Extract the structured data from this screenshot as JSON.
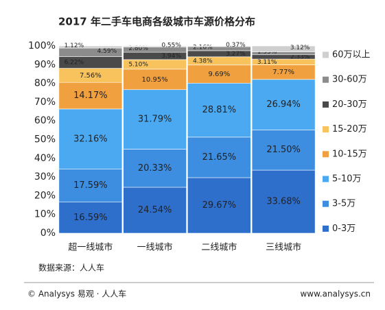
{
  "chart_data": {
    "type": "stacked_bar_percent",
    "title": "2017 年二手车电商各级城市车源价格分布",
    "source": "数据来源：人人车",
    "footer_left": "© Analysys 易观 · 人人车",
    "footer_right": "www.analysys.cn",
    "categories": [
      "超一线城市",
      "一线城市",
      "二线城市",
      "三线城市"
    ],
    "ylim": [
      0,
      100
    ],
    "yticks": [
      {
        "value": 0,
        "label": "0%"
      },
      {
        "value": 10,
        "label": "10%"
      },
      {
        "value": 20,
        "label": "20%"
      },
      {
        "value": 30,
        "label": "30%"
      },
      {
        "value": 40,
        "label": "40%"
      },
      {
        "value": 50,
        "label": "50%"
      },
      {
        "value": 60,
        "label": "60%"
      },
      {
        "value": 70,
        "label": "70%"
      },
      {
        "value": 80,
        "label": "80%"
      },
      {
        "value": 90,
        "label": "90%"
      },
      {
        "value": 100,
        "label": "100%"
      }
    ],
    "series": [
      {
        "name": "0-3万",
        "color": "#2f6fcc",
        "values": [
          16.59,
          24.54,
          29.67,
          33.68
        ],
        "value_labels": [
          "16.59%",
          "24.54%",
          "29.67%",
          "33.68%"
        ]
      },
      {
        "name": "3-5万",
        "color": "#3d8de0",
        "values": [
          17.59,
          20.33,
          21.65,
          21.5
        ],
        "value_labels": [
          "17.59%",
          "20.33%",
          "21.65%",
          "21.50%"
        ]
      },
      {
        "name": "5-10万",
        "color": "#4ba9f2",
        "values": [
          32.16,
          31.79,
          28.81,
          26.94
        ],
        "value_labels": [
          "32.16%",
          "31.79%",
          "28.81%",
          "26.94%"
        ]
      },
      {
        "name": "10-15万",
        "color": "#f0a03e",
        "values": [
          14.17,
          10.95,
          9.69,
          7.77
        ],
        "value_labels": [
          "14.17%",
          "10.95%",
          "9.69%",
          "7.77%"
        ]
      },
      {
        "name": "15-20万",
        "color": "#f8c35c",
        "values": [
          7.56,
          5.1,
          4.38,
          3.11
        ],
        "value_labels": [
          "7.56%",
          "5.10%",
          "4.38%",
          "3.11%"
        ]
      },
      {
        "name": "20-30万",
        "color": "#4a4a4a",
        "values": [
          6.22,
          3.94,
          3.27,
          2.33
        ],
        "value_labels": [
          "6.22%",
          "3.94%",
          "3.27%",
          "2.33%"
        ]
      },
      {
        "name": "30-60万",
        "color": "#8c8c8c",
        "values": [
          4.59,
          2.8,
          2.16,
          1.55
        ],
        "value_labels": [
          "4.59%",
          "2.80%",
          "2.16%",
          "1.55%"
        ]
      },
      {
        "name": "60万以上",
        "color": "#cfcfcf",
        "values": [
          1.12,
          0.55,
          0.37,
          3.12
        ],
        "value_labels": [
          "1.12%",
          "0.55%",
          "0.37%",
          "3.12%"
        ]
      }
    ]
  }
}
